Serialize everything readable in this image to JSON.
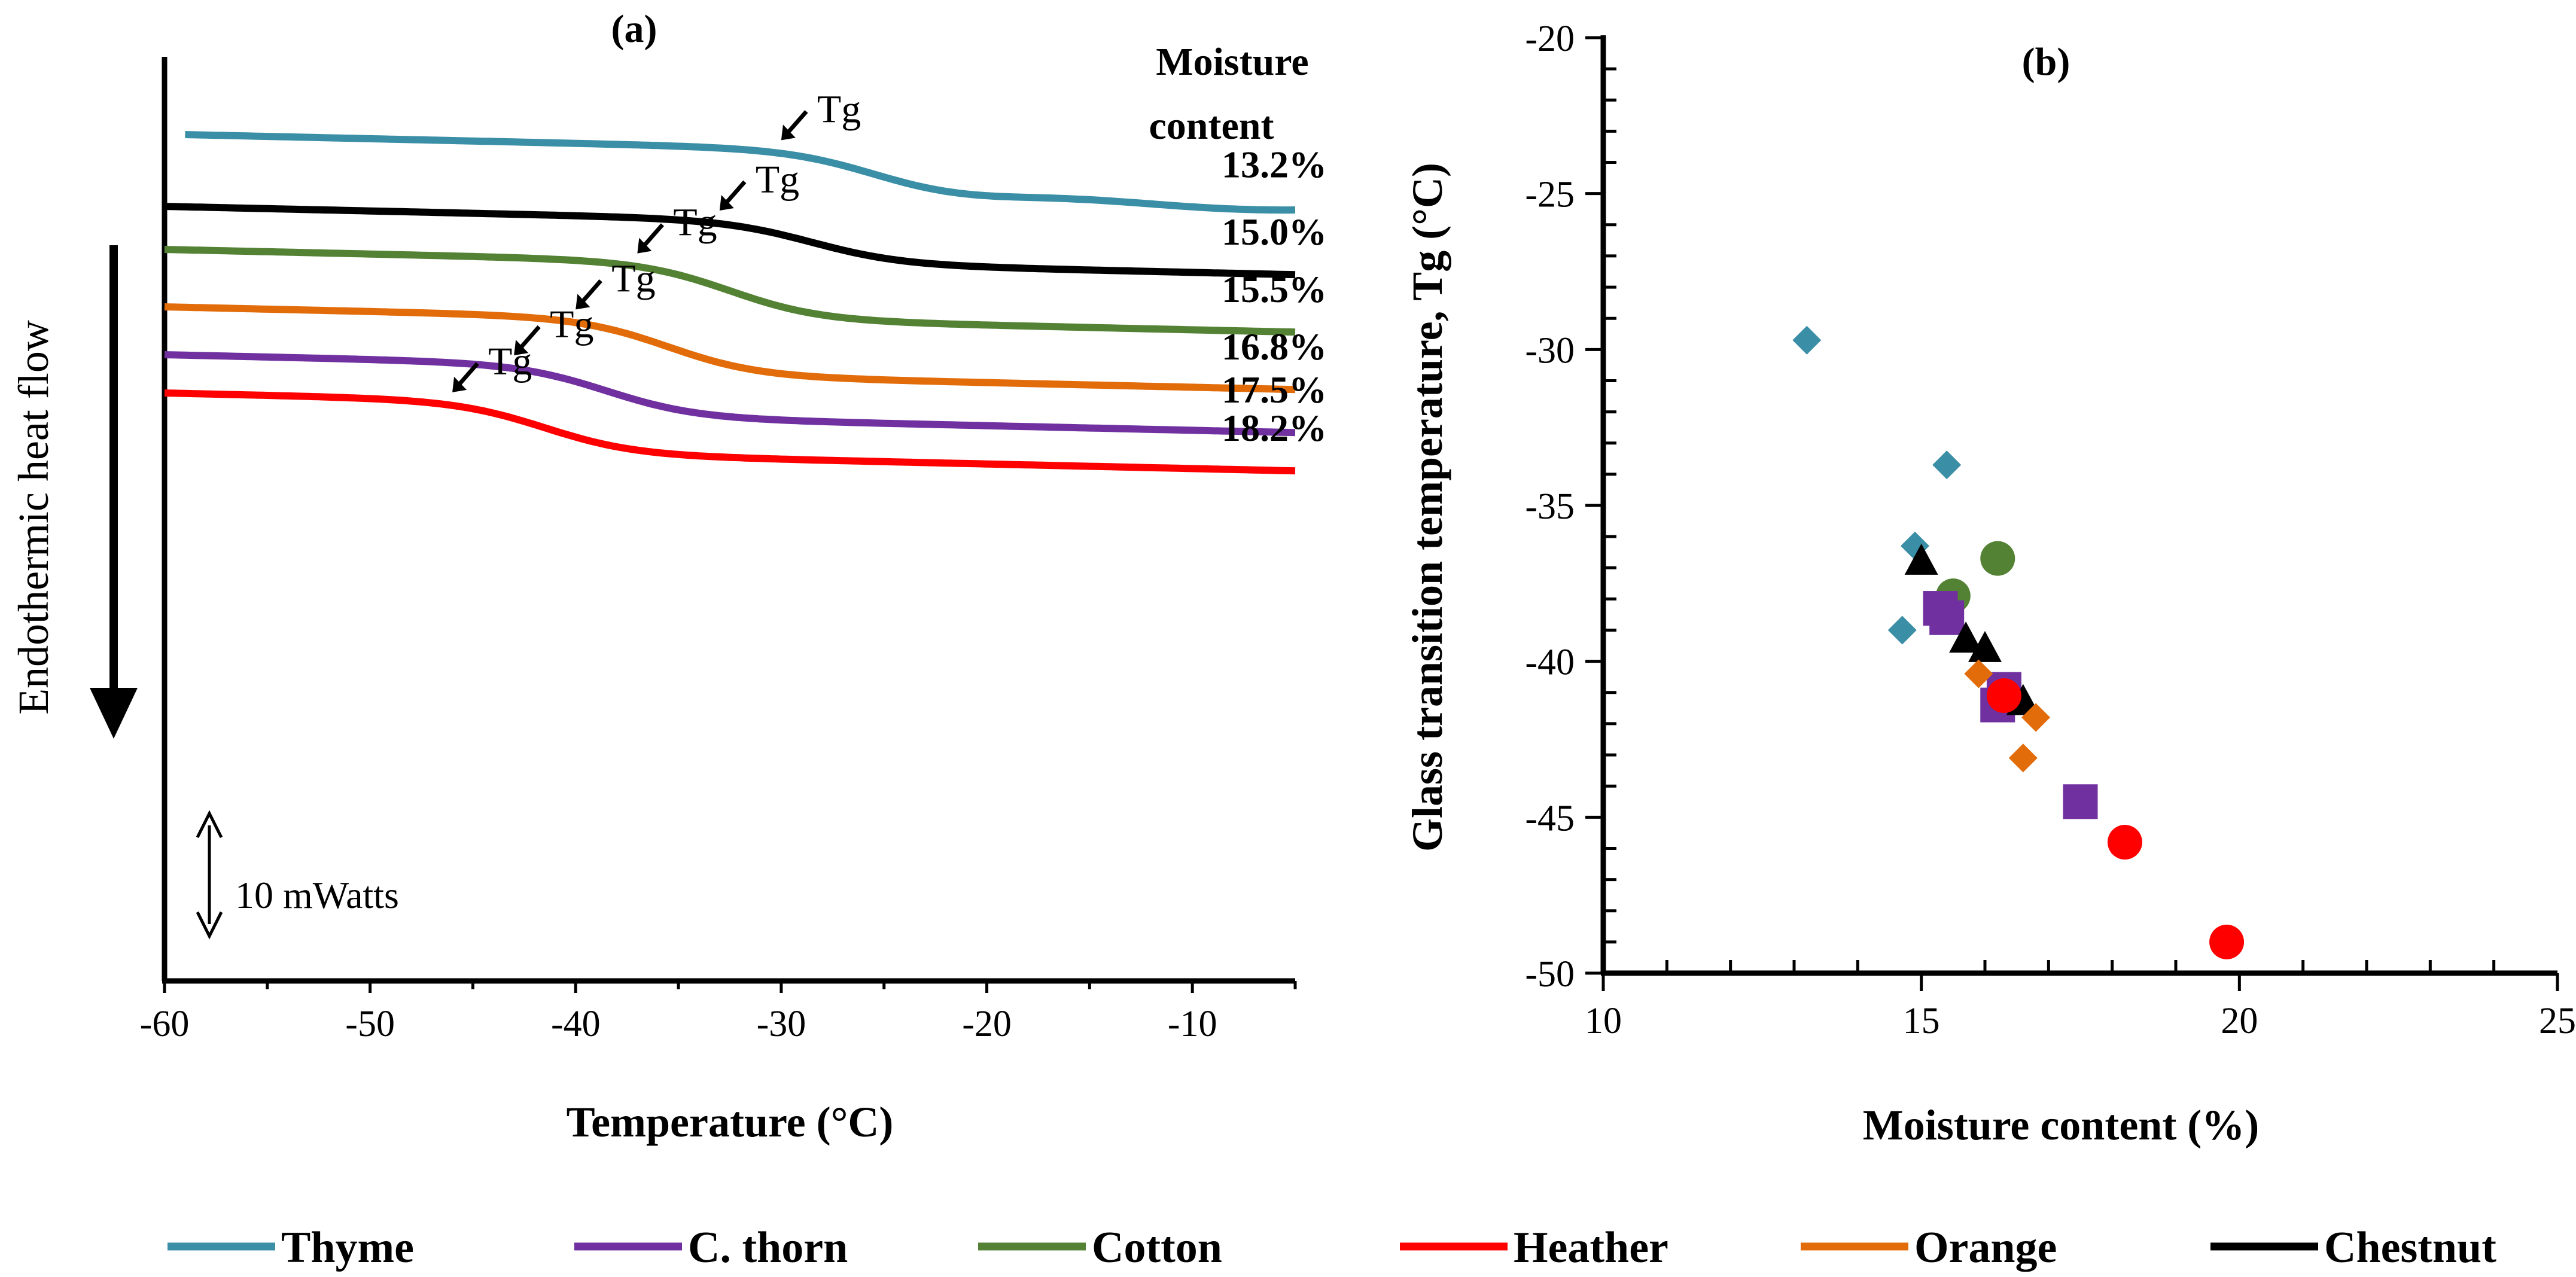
{
  "chart_data": [
    {
      "type": "line",
      "panel_label": "(a)",
      "title": "",
      "xlabel": "Temperature (°C)",
      "ylabel": "Endothermic heat flow",
      "xlim": [
        -60,
        -5
      ],
      "xticks": [
        -60,
        -50,
        -40,
        -30,
        -20,
        -10
      ],
      "tick_labels": [
        "-60",
        "-50",
        "-40",
        "-30",
        "-20",
        "-10"
      ],
      "moisture_header": [
        "Moisture",
        "content"
      ],
      "scale_bar_label": "10 mWatts",
      "tg_label": "Tg",
      "series": [
        {
          "name": "Thyme",
          "moisture": "13.2%",
          "tg": -30,
          "start": 0.0,
          "step": 0.5
        },
        {
          "name": "Chestnut",
          "moisture": "15.0%",
          "tg": -33,
          "start": 0.75,
          "step": 0.45
        },
        {
          "name": "Cotton",
          "moisture": "15.5%",
          "tg": -37,
          "start": 1.2,
          "step": 0.6
        },
        {
          "name": "Orange",
          "moisture": "16.8%",
          "tg": -40,
          "start": 1.8,
          "step": 0.6
        },
        {
          "name": "C. thorn",
          "moisture": "17.5%",
          "tg": -43,
          "start": 2.3,
          "step": 0.55
        },
        {
          "name": "Heather",
          "moisture": "18.2%",
          "tg": -46,
          "start": 2.7,
          "step": 0.55
        }
      ]
    },
    {
      "type": "scatter",
      "panel_label": "(b)",
      "title": "",
      "xlabel": "Moisture content (%)",
      "ylabel": "Glass transition temperature, Tg (°C)",
      "xlim": [
        10,
        25
      ],
      "ylim": [
        -50,
        -20
      ],
      "xticks": [
        10,
        15,
        20,
        25
      ],
      "yticks": [
        -20,
        -25,
        -30,
        -35,
        -40,
        -45,
        -50
      ],
      "x_tick_labels": [
        "10",
        "15",
        "20",
        "25"
      ],
      "y_tick_labels": [
        "-20",
        "-25",
        "-30",
        "-35",
        "-40",
        "-45",
        "-50"
      ],
      "series": [
        {
          "name": "Thyme",
          "marker": "diamond",
          "points": [
            [
              13.2,
              -29.7
            ],
            [
              15.4,
              -33.7
            ],
            [
              14.9,
              -36.3
            ],
            [
              14.7,
              -39.0
            ]
          ]
        },
        {
          "name": "Cotton",
          "marker": "circle",
          "points": [
            [
              16.2,
              -36.7
            ],
            [
              15.5,
              -37.9
            ]
          ]
        },
        {
          "name": "C. thorn",
          "marker": "square",
          "points": [
            [
              15.3,
              -38.3
            ],
            [
              15.4,
              -38.6
            ],
            [
              16.2,
              -41.4
            ],
            [
              16.3,
              -40.9
            ],
            [
              17.5,
              -44.5
            ]
          ]
        },
        {
          "name": "Chestnut",
          "marker": "triangle",
          "points": [
            [
              15.0,
              -36.8
            ],
            [
              15.7,
              -39.3
            ],
            [
              16.0,
              -39.6
            ],
            [
              16.6,
              -41.3
            ]
          ]
        },
        {
          "name": "Orange",
          "marker": "diamond",
          "points": [
            [
              15.9,
              -40.4
            ],
            [
              16.3,
              -41.0
            ],
            [
              16.8,
              -41.8
            ],
            [
              16.6,
              -43.1
            ]
          ]
        },
        {
          "name": "Heather",
          "marker": "circle",
          "points": [
            [
              16.3,
              -41.1
            ],
            [
              18.2,
              -45.8
            ],
            [
              19.8,
              -49.0
            ]
          ]
        }
      ]
    }
  ],
  "legend": [
    {
      "name": "Thyme",
      "color": "#3a8ea6"
    },
    {
      "name": "C. thorn",
      "color": "#7030a0"
    },
    {
      "name": "Cotton",
      "color": "#548235"
    },
    {
      "name": "Heather",
      "color": "#ff0000"
    },
    {
      "name": "Orange",
      "color": "#e36c0a"
    },
    {
      "name": "Chestnut",
      "color": "#000000"
    }
  ]
}
